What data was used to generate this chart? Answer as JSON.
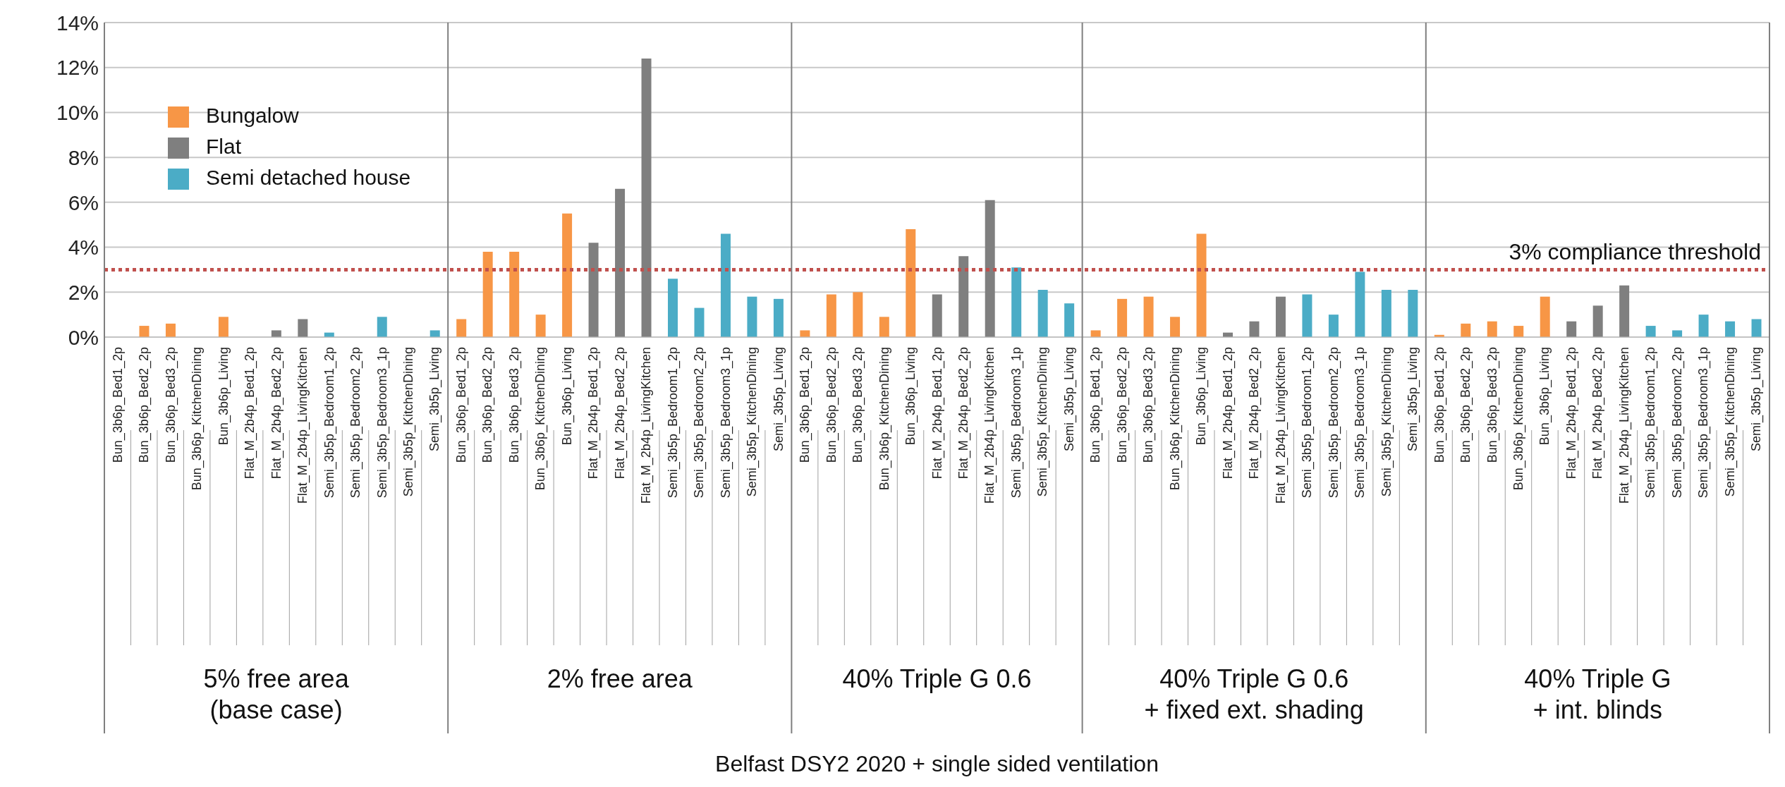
{
  "chart_data": {
    "type": "bar",
    "categories": [
      "Bun_3b6p_Bed1_2p",
      "Bun_3b6p_Bed2_2p",
      "Bun_3b6p_Bed3_2p",
      "Bun_3b6p_KitchenDining",
      "Bun_3b6p_Living",
      "Flat_M_2b4p_Bed1_2p",
      "Flat_M_2b4p_Bed2_2p",
      "Flat_M_2b4p_LivingKitchen",
      "Semi_3b5p_Bedroom1_2p",
      "Semi_3b5p_Bedroom2_2p",
      "Semi_3b5p_Bedroom3_1p",
      "Semi_3b5p_KitchenDining",
      "Semi_3b5p_Living",
      "Bun_3b6p_Bed1_2p",
      "Bun_3b6p_Bed2_2p",
      "Bun_3b6p_Bed3_2p",
      "Bun_3b6p_KitchenDining",
      "Bun_3b6p_Living",
      "Flat_M_2b4p_Bed1_2p",
      "Flat_M_2b4p_Bed2_2p",
      "Flat_M_2b4p_LivingKitchen",
      "Semi_3b5p_Bedroom1_2p",
      "Semi_3b5p_Bedroom2_2p",
      "Semi_3b5p_Bedroom3_1p",
      "Semi_3b5p_KitchenDining",
      "Semi_3b5p_Living",
      "Bun_3b6p_Bed1_2p",
      "Bun_3b6p_Bed2_2p",
      "Bun_3b6p_Bed3_2p",
      "Bun_3b6p_KitchenDining",
      "Bun_3b6p_Living",
      "Flat_M_2b4p_Bed1_2p",
      "Flat_M_2b4p_Bed2_2p",
      "Flat_M_2b4p_LivingKitchen",
      "Semi_3b5p_Bedroom3_1p",
      "Semi_3b5p_KitchenDining",
      "Semi_3b5p_Living",
      "Bun_3b6p_Bed1_2p",
      "Bun_3b6p_Bed2_2p",
      "Bun_3b6p_Bed3_2p",
      "Bun_3b6p_KitchenDining",
      "Bun_3b6p_Living",
      "Flat_M_2b4p_Bed1_2p",
      "Flat_M_2b4p_Bed2_2p",
      "Flat_M_2b4p_LivingKitchen",
      "Semi_3b5p_Bedroom1_2p",
      "Semi_3b5p_Bedroom2_2p",
      "Semi_3b5p_Bedroom3_1p",
      "Semi_3b5p_KitchenDining",
      "Semi_3b5p_Living",
      "Bun_3b6p_Bed1_2p",
      "Bun_3b6p_Bed2_2p",
      "Bun_3b6p_Bed3_2p",
      "Bun_3b6p_KitchenDining",
      "Bun_3b6p_Living",
      "Flat_M_2b4p_Bed1_2p",
      "Flat_M_2b4p_Bed2_2p",
      "Flat_M_2b4p_LivingKitchen",
      "Semi_3b5p_Bedroom1_2p",
      "Semi_3b5p_Bedroom2_2p",
      "Semi_3b5p_Bedroom3_1p",
      "Semi_3b5p_KitchenDining",
      "Semi_3b5p_Living"
    ],
    "series": [
      {
        "name": "Bungalow",
        "color": "#f79646",
        "values": [
          0,
          0.5,
          0.6,
          0,
          0.9,
          null,
          null,
          null,
          null,
          null,
          null,
          null,
          null,
          0.8,
          3.8,
          3.8,
          1.0,
          5.5,
          null,
          null,
          null,
          null,
          null,
          null,
          null,
          null,
          0.3,
          1.9,
          2.0,
          0.9,
          4.8,
          null,
          null,
          null,
          null,
          null,
          null,
          0.3,
          1.7,
          1.8,
          0.9,
          4.6,
          null,
          null,
          null,
          null,
          null,
          null,
          null,
          null,
          0.1,
          0.6,
          0.7,
          0.5,
          1.8,
          null,
          null,
          null,
          null,
          null,
          null,
          null,
          null
        ]
      },
      {
        "name": "Flat",
        "color": "#7f7f7f",
        "values": [
          null,
          null,
          null,
          null,
          null,
          0,
          0.3,
          0.8,
          null,
          null,
          null,
          null,
          null,
          null,
          null,
          null,
          null,
          null,
          4.2,
          6.6,
          12.4,
          null,
          null,
          null,
          null,
          null,
          null,
          null,
          null,
          null,
          null,
          1.9,
          3.6,
          6.1,
          null,
          null,
          null,
          null,
          null,
          null,
          null,
          null,
          0.2,
          0.7,
          1.8,
          null,
          null,
          null,
          null,
          null,
          null,
          null,
          null,
          null,
          null,
          0.7,
          1.4,
          2.3,
          null,
          null,
          null,
          null,
          null
        ]
      },
      {
        "name": "Semi detached house",
        "color": "#4bacc6",
        "values": [
          null,
          null,
          null,
          null,
          null,
          null,
          null,
          null,
          0.2,
          0,
          0.9,
          0,
          0.3,
          null,
          null,
          null,
          null,
          null,
          null,
          null,
          null,
          2.6,
          1.3,
          4.6,
          1.8,
          1.7,
          null,
          null,
          null,
          null,
          null,
          null,
          null,
          null,
          3.1,
          2.1,
          1.5,
          null,
          null,
          null,
          null,
          null,
          null,
          null,
          null,
          1.9,
          1.0,
          2.9,
          2.1,
          2.1,
          null,
          null,
          null,
          null,
          null,
          null,
          null,
          null,
          0.5,
          0.3,
          1.0,
          0.7,
          0.8
        ]
      }
    ],
    "ylim": [
      0,
      14
    ],
    "yticks": [
      {
        "value": 0,
        "label": "0%"
      },
      {
        "value": 2,
        "label": "2%"
      },
      {
        "value": 4,
        "label": "4%"
      },
      {
        "value": 6,
        "label": "6%"
      },
      {
        "value": 8,
        "label": "8%"
      },
      {
        "value": 10,
        "label": "10%"
      },
      {
        "value": 12,
        "label": "12%"
      },
      {
        "value": 14,
        "label": "14%"
      }
    ],
    "grid": "y",
    "legend": "top left",
    "ref_lines": [
      {
        "axis": "y",
        "value": 3,
        "label": "3% compliance threshold",
        "color": "#c0504d",
        "line_style": "dotted"
      }
    ],
    "annotations": [
      "5% free area\n(base case)",
      "2% free area",
      "40% Triple G 0.6",
      "40% Triple G 0.6\n+ fixed ext. shading",
      "40% Triple G\n+ int. blinds",
      "Belfast DSY2 2020 + single sided ventilation"
    ]
  }
}
